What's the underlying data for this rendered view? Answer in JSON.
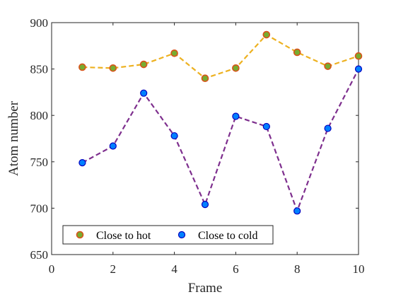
{
  "chart_data": {
    "type": "line",
    "xlabel": "Frame",
    "ylabel": "Atom number",
    "xlim": [
      0,
      10
    ],
    "ylim": [
      650,
      900
    ],
    "x_ticks": [
      0,
      2,
      4,
      6,
      8,
      10
    ],
    "y_ticks": [
      650,
      700,
      750,
      800,
      850,
      900
    ],
    "grid": false,
    "legend_position": "bottom-left",
    "x": [
      1,
      2,
      3,
      4,
      5,
      6,
      7,
      8,
      9,
      10
    ],
    "series": [
      {
        "name": "Close to hot",
        "values": [
          852,
          851,
          855,
          867,
          840,
          851,
          887,
          868,
          853,
          864
        ],
        "line_color": "#EDB120",
        "marker_fill": "#77AC30",
        "marker_edge": "#D95319",
        "line_style": "dashed"
      },
      {
        "name": "Close to cold",
        "values": [
          749,
          767,
          824,
          778,
          704,
          799,
          788,
          697,
          786,
          850
        ],
        "line_color": "#7E2F8E",
        "marker_fill": "#0080FF",
        "marker_edge": "#0000C0",
        "line_style": "dashed"
      }
    ]
  }
}
